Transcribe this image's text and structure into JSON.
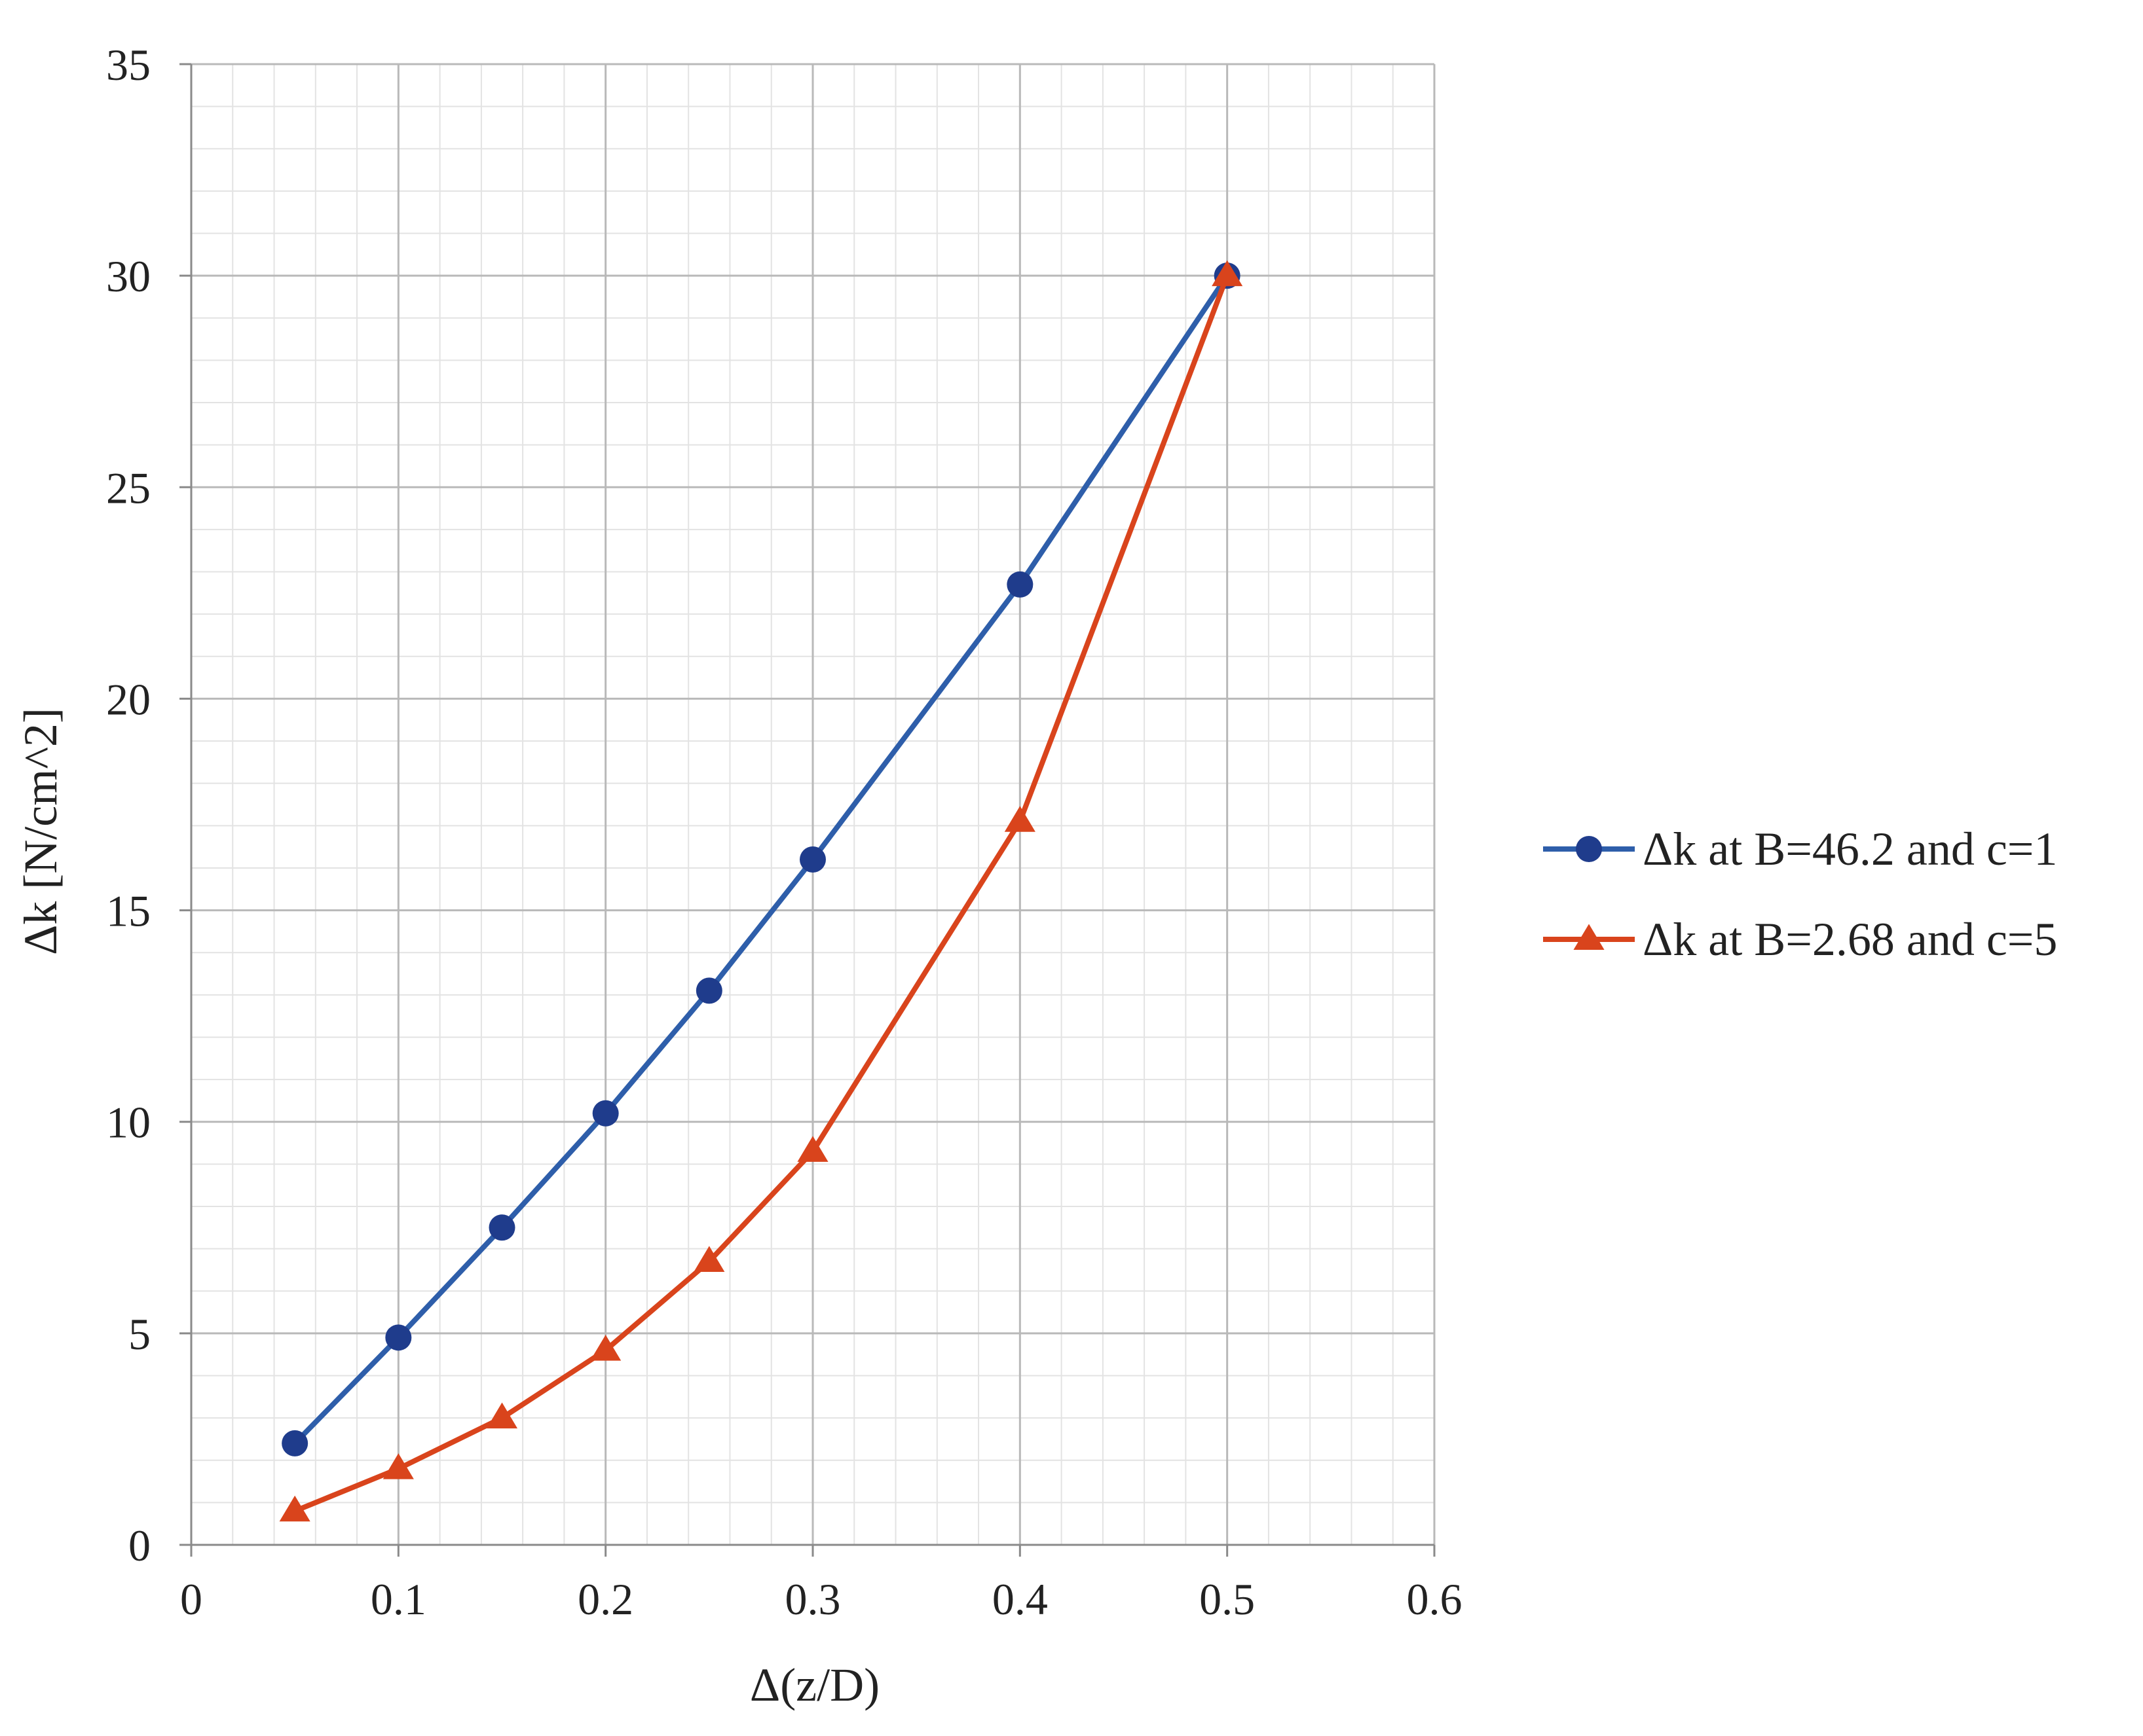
{
  "chart_data": {
    "type": "line",
    "xlabel": "Δ(z/D)",
    "ylabel": "Δk [N/cm^2]",
    "xlim": [
      0,
      0.6
    ],
    "ylim": [
      0,
      35
    ],
    "x_ticks": [
      "0",
      "0.1",
      "0.2",
      "0.3",
      "0.4",
      "0.5",
      "0.6"
    ],
    "y_ticks": [
      "0",
      "5",
      "10",
      "15",
      "20",
      "25",
      "30",
      "35"
    ],
    "x_major_step": 0.1,
    "x_minor_step": 0.02,
    "y_major_step": 5,
    "y_minor_step": 1,
    "grid": true,
    "legend_position": "right",
    "series": [
      {
        "name": "Δk at B=46.2 and c=1",
        "color": "#2E5EAA",
        "marker_color": "#1F3C8C",
        "marker": "circle",
        "x": [
          0.05,
          0.1,
          0.15,
          0.2,
          0.25,
          0.3,
          0.4,
          0.5
        ],
        "y": [
          2.4,
          4.9,
          7.5,
          10.2,
          13.1,
          16.2,
          22.7,
          30.0
        ]
      },
      {
        "name": "Δk at B=2.68 and c=5",
        "color": "#D9441C",
        "marker_color": "#D9441C",
        "marker": "triangle",
        "x": [
          0.05,
          0.1,
          0.15,
          0.2,
          0.25,
          0.3,
          0.4,
          0.5
        ],
        "y": [
          0.8,
          1.8,
          3.0,
          4.6,
          6.7,
          9.3,
          17.1,
          30.0
        ]
      }
    ]
  }
}
